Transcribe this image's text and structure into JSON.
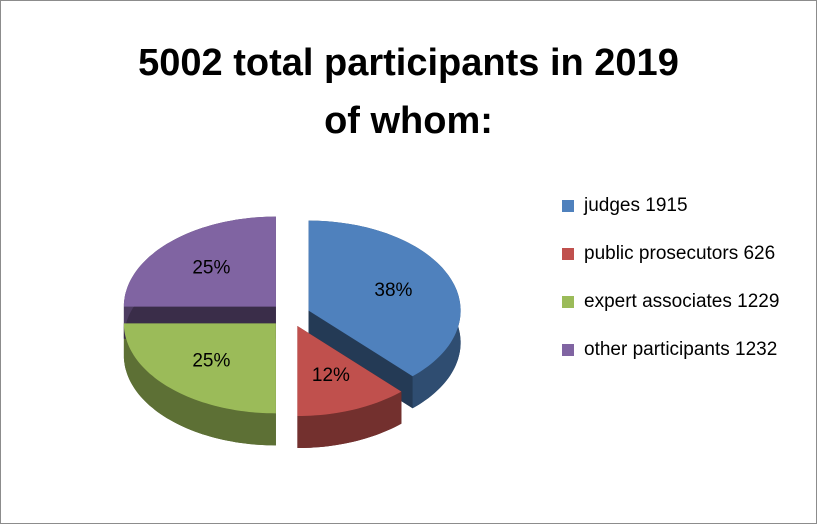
{
  "chart_data": {
    "type": "pie3d",
    "title": [
      "5002 total participants in 2019",
      "of whom:"
    ],
    "categories": [
      "judges 1915",
      "public prosecutors 626",
      "expert associates 1229",
      "other participants 1232"
    ],
    "values": [
      38,
      12,
      25,
      25
    ],
    "value_labels": [
      "38%",
      "12%",
      "25%",
      "25%"
    ],
    "colors": [
      "#4f81bd",
      "#c0504d",
      "#9bbb59",
      "#8064a2"
    ],
    "legend": "right"
  }
}
